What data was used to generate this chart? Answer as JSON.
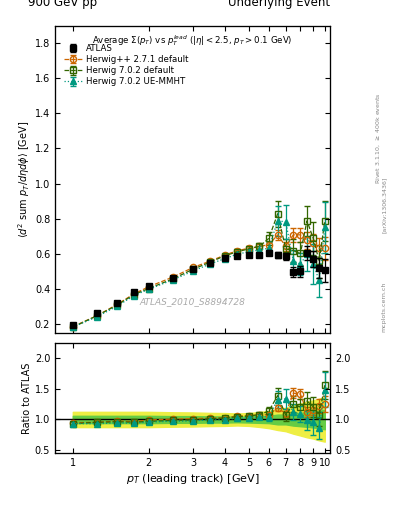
{
  "title_left": "900 GeV pp",
  "title_right": "Underlying Event",
  "ylabel_main": "$\\langle d^2$ sum $p_T/d\\eta d\\phi\\rangle$ [GeV]",
  "ylabel_ratio": "Ratio to ATLAS",
  "xlabel": "$p_T$ (leading track) [GeV]",
  "watermark": "ATLAS_2010_S8894728",
  "atlas_x": [
    1.0,
    1.25,
    1.5,
    1.75,
    2.0,
    2.5,
    3.0,
    3.5,
    4.0,
    4.5,
    5.0,
    5.5,
    6.0,
    6.5,
    7.0,
    7.5,
    8.0,
    8.5,
    9.0,
    9.5,
    10.0
  ],
  "atlas_y": [
    0.195,
    0.26,
    0.32,
    0.385,
    0.415,
    0.465,
    0.515,
    0.545,
    0.575,
    0.585,
    0.595,
    0.595,
    0.605,
    0.595,
    0.585,
    0.495,
    0.5,
    0.605,
    0.57,
    0.52,
    0.505
  ],
  "atlas_yerr": [
    0.008,
    0.008,
    0.009,
    0.009,
    0.01,
    0.01,
    0.01,
    0.01,
    0.01,
    0.01,
    0.01,
    0.012,
    0.014,
    0.018,
    0.02,
    0.028,
    0.032,
    0.038,
    0.048,
    0.058,
    0.065
  ],
  "herwig271_x": [
    1.0,
    1.25,
    1.5,
    1.75,
    2.0,
    2.5,
    3.0,
    3.5,
    4.0,
    4.5,
    5.0,
    5.5,
    6.0,
    6.5,
    7.0,
    7.5,
    8.0,
    8.5,
    9.0,
    9.5,
    10.0
  ],
  "herwig271_y": [
    0.185,
    0.248,
    0.312,
    0.372,
    0.412,
    0.468,
    0.522,
    0.558,
    0.592,
    0.618,
    0.632,
    0.642,
    0.652,
    0.708,
    0.642,
    0.708,
    0.708,
    0.678,
    0.662,
    0.632,
    0.632
  ],
  "herwig271_yerr": [
    0.004,
    0.004,
    0.004,
    0.004,
    0.005,
    0.005,
    0.006,
    0.006,
    0.008,
    0.009,
    0.01,
    0.012,
    0.018,
    0.028,
    0.028,
    0.038,
    0.038,
    0.048,
    0.048,
    0.058,
    0.065
  ],
  "herwig702d_x": [
    1.0,
    1.25,
    1.5,
    1.75,
    2.0,
    2.5,
    3.0,
    3.5,
    4.0,
    4.5,
    5.0,
    5.5,
    6.0,
    6.5,
    7.0,
    7.5,
    8.0,
    8.5,
    9.0,
    9.5,
    10.0
  ],
  "herwig702d_y": [
    0.182,
    0.248,
    0.308,
    0.368,
    0.402,
    0.458,
    0.512,
    0.552,
    0.588,
    0.612,
    0.628,
    0.642,
    0.688,
    0.828,
    0.628,
    0.618,
    0.602,
    0.788,
    0.688,
    0.558,
    0.788
  ],
  "herwig702d_yerr": [
    0.004,
    0.004,
    0.004,
    0.006,
    0.006,
    0.007,
    0.009,
    0.01,
    0.013,
    0.016,
    0.018,
    0.022,
    0.038,
    0.075,
    0.055,
    0.065,
    0.065,
    0.085,
    0.095,
    0.095,
    0.115
  ],
  "herwig702ue_x": [
    1.0,
    1.25,
    1.5,
    1.75,
    2.0,
    2.5,
    3.0,
    3.5,
    4.0,
    4.5,
    5.0,
    5.5,
    6.0,
    6.5,
    7.0,
    7.5,
    8.0,
    8.5,
    9.0,
    9.5,
    10.0
  ],
  "herwig702ue_y": [
    0.182,
    0.242,
    0.302,
    0.362,
    0.398,
    0.452,
    0.502,
    0.542,
    0.572,
    0.598,
    0.612,
    0.622,
    0.632,
    0.788,
    0.782,
    0.558,
    0.542,
    0.598,
    0.542,
    0.448,
    0.752
  ],
  "herwig702ue_yerr": [
    0.004,
    0.004,
    0.004,
    0.006,
    0.006,
    0.007,
    0.009,
    0.01,
    0.013,
    0.016,
    0.018,
    0.022,
    0.038,
    0.085,
    0.095,
    0.065,
    0.065,
    0.095,
    0.115,
    0.095,
    0.145
  ],
  "ratio_band_green_lo": [
    0.94,
    0.94,
    0.94,
    0.94,
    0.94,
    0.945,
    0.945,
    0.95,
    0.95,
    0.955,
    0.95,
    0.945,
    0.94,
    0.92,
    0.92,
    0.9,
    0.89,
    0.88,
    0.87,
    0.855,
    0.84
  ],
  "ratio_band_green_hi": [
    1.06,
    1.06,
    1.06,
    1.06,
    1.06,
    1.055,
    1.055,
    1.05,
    1.05,
    1.045,
    1.05,
    1.055,
    1.06,
    1.08,
    1.08,
    1.1,
    1.11,
    1.12,
    1.13,
    1.145,
    1.16
  ],
  "ratio_band_yellow_lo": [
    0.875,
    0.875,
    0.875,
    0.875,
    0.875,
    0.882,
    0.885,
    0.892,
    0.895,
    0.902,
    0.895,
    0.878,
    0.858,
    0.828,
    0.808,
    0.768,
    0.738,
    0.708,
    0.688,
    0.658,
    0.638
  ],
  "ratio_band_yellow_hi": [
    1.125,
    1.125,
    1.125,
    1.125,
    1.125,
    1.118,
    1.115,
    1.108,
    1.105,
    1.098,
    1.105,
    1.122,
    1.142,
    1.172,
    1.192,
    1.232,
    1.262,
    1.292,
    1.312,
    1.342,
    1.362
  ],
  "color_atlas": "#000000",
  "color_herwig271": "#cc6600",
  "color_herwig702d": "#336600",
  "color_herwig702ue": "#009980",
  "color_band_green": "#66cc44",
  "color_band_yellow": "#eeee44",
  "ylim_main": [
    0.15,
    1.9
  ],
  "ylim_ratio": [
    0.45,
    2.25
  ],
  "xlim": [
    0.85,
    10.5
  ],
  "yticks_main": [
    0.2,
    0.4,
    0.6,
    0.8,
    1.0,
    1.2,
    1.4,
    1.6,
    1.8
  ],
  "yticks_ratio": [
    0.5,
    1.0,
    1.5,
    2.0
  ],
  "xticks": [
    1,
    2,
    3,
    4,
    5,
    6,
    7,
    8,
    9,
    10
  ]
}
